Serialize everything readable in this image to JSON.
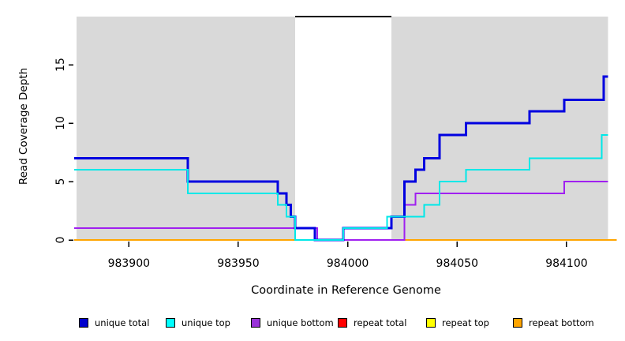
{
  "figure": {
    "x_axis_title": "Coordinate in Reference Genome",
    "y_axis_title": "Read Coverage Depth"
  },
  "chart_data": {
    "type": "line",
    "subtype": "step",
    "title": "",
    "xlabel": "Coordinate in Reference Genome",
    "ylabel": "Read Coverage Depth",
    "xlim": [
      983875,
      984123
    ],
    "ylim": [
      0,
      19.1
    ],
    "grid": false,
    "legend_position": "bottom",
    "x_ticks": [
      983900,
      983950,
      984000,
      984050,
      984100
    ],
    "y_ticks": [
      0,
      5,
      10,
      15
    ],
    "panel": {
      "shaded_color": "#d9d9d9",
      "shaded_x_regions": [
        [
          983876,
          983976
        ],
        [
          984020,
          984119
        ]
      ],
      "white_gap_x": [
        983976,
        984020
      ],
      "gap_top_border_color": "#000000"
    },
    "series": [
      {
        "name": "repeat total",
        "color": "#ee0000",
        "line_width": 2,
        "x_start": 983875,
        "x_end": 984119,
        "start_value": 0,
        "steps": []
      },
      {
        "name": "repeat top",
        "color": "#ffff00",
        "line_width": 2,
        "x_start": 983875,
        "x_end": 984119,
        "start_value": 0,
        "steps": []
      },
      {
        "name": "repeat bottom",
        "color": "#ffa500",
        "line_width": 2,
        "x_start": 983875,
        "x_end": 984123,
        "start_value": 0,
        "steps": []
      },
      {
        "name": "unique bottom",
        "color": "#a020f0",
        "line_width": 2,
        "x_start": 983875,
        "x_end": 984119,
        "start_value": 1,
        "steps": [
          [
            983986,
            0
          ],
          [
            984026,
            3
          ],
          [
            984031,
            4
          ],
          [
            984099,
            5
          ]
        ]
      },
      {
        "name": "unique total",
        "color": "#0000e0",
        "line_width": 3,
        "x_start": 983875,
        "x_end": 984119,
        "start_value": 7,
        "steps": [
          [
            983927,
            5
          ],
          [
            983968,
            4
          ],
          [
            983972,
            3
          ],
          [
            983974,
            2
          ],
          [
            983976,
            1
          ],
          [
            983985,
            0
          ],
          [
            983998,
            1
          ],
          [
            984020,
            2
          ],
          [
            984026,
            5
          ],
          [
            984031,
            6
          ],
          [
            984035,
            7
          ],
          [
            984042,
            9
          ],
          [
            984054,
            10
          ],
          [
            984083,
            11
          ],
          [
            984099,
            12
          ],
          [
            984117,
            14
          ]
        ]
      },
      {
        "name": "unique top",
        "color": "#00e8e8",
        "line_width": 2,
        "x_start": 983875,
        "x_end": 984119,
        "start_value": 6,
        "steps": [
          [
            983927,
            4
          ],
          [
            983968,
            3
          ],
          [
            983972,
            2
          ],
          [
            983976,
            0
          ],
          [
            983998,
            1
          ],
          [
            984018,
            2
          ],
          [
            984035,
            3
          ],
          [
            984042,
            5
          ],
          [
            984054,
            6
          ],
          [
            984083,
            7
          ],
          [
            984116,
            9
          ]
        ]
      }
    ],
    "legend": [
      {
        "label": "unique total",
        "color": "#0000cd"
      },
      {
        "label": "unique top",
        "color": "#00ffff"
      },
      {
        "label": "unique bottom",
        "color": "#9932d8"
      },
      {
        "label": "repeat total",
        "color": "#ff0000"
      },
      {
        "label": "repeat top",
        "color": "#ffff00"
      },
      {
        "label": "repeat bottom",
        "color": "#ffa500"
      }
    ]
  }
}
